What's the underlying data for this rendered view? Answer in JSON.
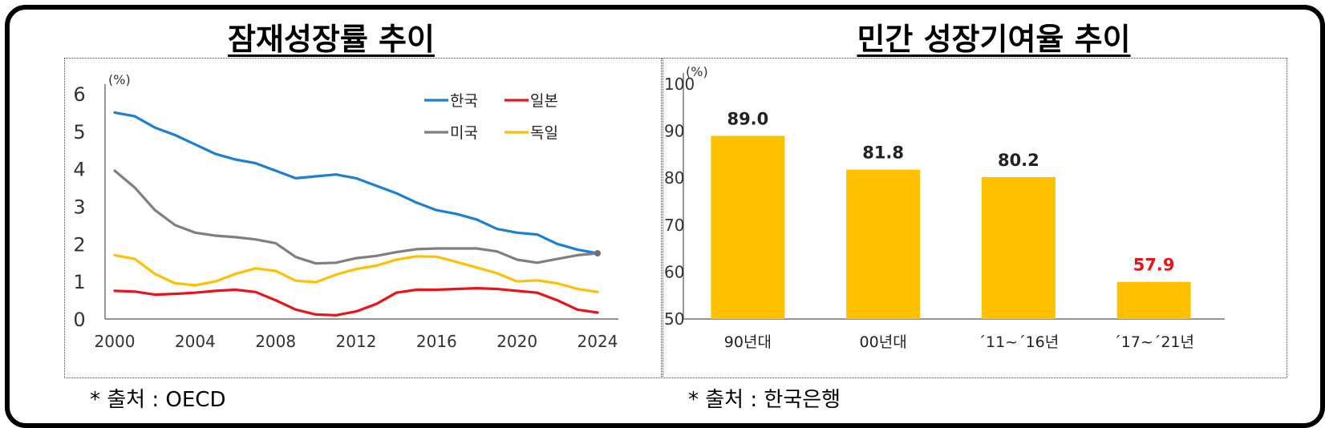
{
  "titles": {
    "left": "잠재성장률 추이",
    "right": "민간 성장기여율 추이"
  },
  "sources": {
    "left": "*  출처  :  OECD",
    "right": "*  출처  :  한국은행"
  },
  "chart_data": [
    {
      "type": "line",
      "title": "잠재성장률 추이",
      "unit_label": "(%)",
      "ylim": [
        0,
        6
      ],
      "yticks": [
        0,
        1,
        2,
        3,
        4,
        5,
        6
      ],
      "xticks": [
        2000,
        2004,
        2008,
        2012,
        2016,
        2020,
        2024
      ],
      "xlim": [
        2000,
        2024
      ],
      "legend_position": "top-right",
      "grid": false,
      "x": [
        2000,
        2001,
        2002,
        2003,
        2004,
        2005,
        2006,
        2007,
        2008,
        2009,
        2010,
        2011,
        2012,
        2013,
        2014,
        2015,
        2016,
        2017,
        2018,
        2019,
        2020,
        2021,
        2022,
        2023,
        2024
      ],
      "series": [
        {
          "name": "한국",
          "color": "#1f7fcf",
          "values": [
            5.5,
            5.4,
            5.1,
            4.9,
            4.65,
            4.4,
            4.25,
            4.15,
            3.95,
            3.75,
            3.8,
            3.85,
            3.75,
            3.55,
            3.35,
            3.1,
            2.9,
            2.8,
            2.65,
            2.4,
            2.3,
            2.25,
            2.0,
            1.85,
            1.75
          ]
        },
        {
          "name": "일본",
          "color": "#e8141c",
          "values": [
            0.75,
            0.73,
            0.65,
            0.67,
            0.7,
            0.75,
            0.78,
            0.72,
            0.5,
            0.25,
            0.12,
            0.1,
            0.2,
            0.4,
            0.7,
            0.78,
            0.78,
            0.8,
            0.82,
            0.8,
            0.75,
            0.7,
            0.5,
            0.25,
            0.17
          ]
        },
        {
          "name": "미국",
          "color": "#7f7f7f",
          "values": [
            3.95,
            3.5,
            2.9,
            2.5,
            2.3,
            2.22,
            2.18,
            2.12,
            2.02,
            1.65,
            1.48,
            1.5,
            1.62,
            1.68,
            1.78,
            1.86,
            1.88,
            1.88,
            1.88,
            1.8,
            1.58,
            1.5,
            1.6,
            1.7,
            1.75
          ]
        },
        {
          "name": "독일",
          "color": "#ffc000",
          "values": [
            1.7,
            1.6,
            1.2,
            0.95,
            0.9,
            1.0,
            1.2,
            1.35,
            1.28,
            1.02,
            0.98,
            1.18,
            1.33,
            1.42,
            1.58,
            1.67,
            1.66,
            1.52,
            1.37,
            1.22,
            1.0,
            1.03,
            0.95,
            0.8,
            0.72
          ]
        }
      ]
    },
    {
      "type": "bar",
      "title": "민간 성장기여율 추이",
      "unit_label": "(%)",
      "ylim": [
        50,
        100
      ],
      "yticks": [
        50,
        60,
        70,
        80,
        90,
        100
      ],
      "grid": false,
      "categories": [
        "90년대",
        "00년대",
        "´11~´16년",
        "´17~´21년"
      ],
      "values": [
        89.0,
        81.8,
        80.2,
        57.9
      ],
      "value_labels": [
        "89.0",
        "81.8",
        "80.2",
        "57.9"
      ],
      "bar_color": "#ffc000",
      "label_colors": [
        "#222222",
        "#222222",
        "#222222",
        "#e8141c"
      ]
    }
  ]
}
